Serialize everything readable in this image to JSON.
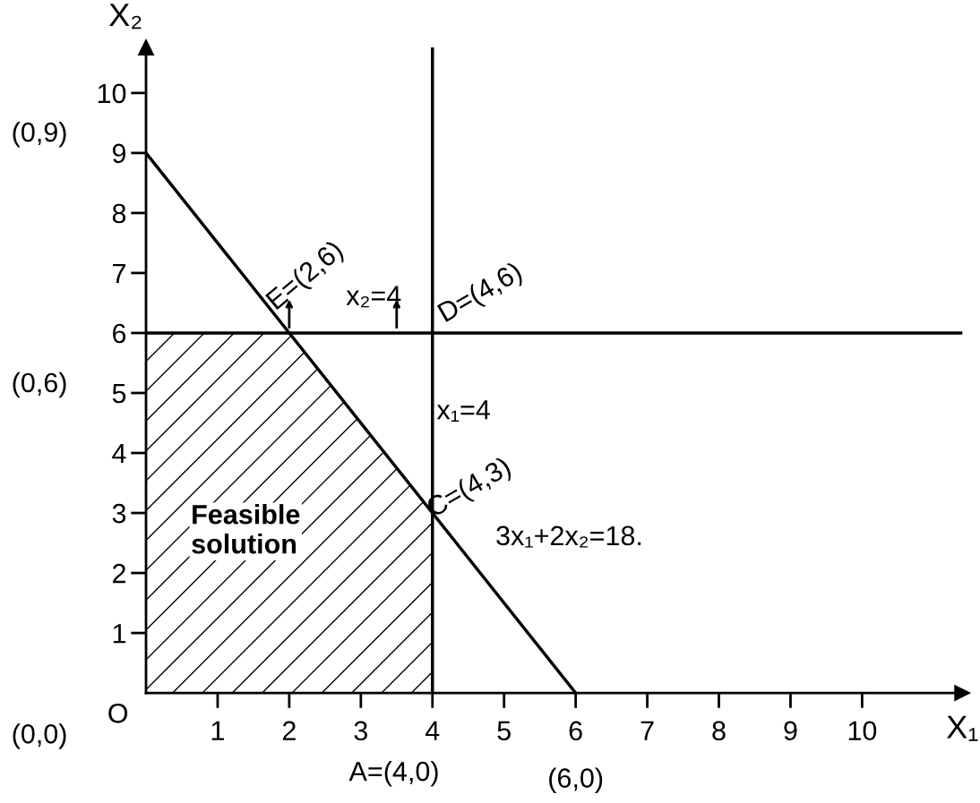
{
  "chart_data": {
    "type": "line",
    "xlabel": "X₁",
    "ylabel": "X₂",
    "xlim": [
      0,
      11.4
    ],
    "ylim": [
      0,
      10.76
    ],
    "xticks": [
      1,
      2,
      3,
      4,
      5,
      6,
      7,
      8,
      9,
      10
    ],
    "yticks": [
      1,
      2,
      3,
      4,
      5,
      6,
      7,
      8,
      9,
      10
    ],
    "series": [
      {
        "x": [
          0,
          6
        ],
        "values": [
          9,
          0
        ],
        "color": "#000000"
      },
      {
        "type": "area",
        "x": [
          0,
          2,
          4
        ],
        "values": [
          6,
          6,
          3
        ],
        "color": "#000000"
      }
    ],
    "ref_lines": [
      {
        "axis": "x",
        "value": 4,
        "color": "#000000"
      },
      {
        "axis": "y",
        "value": 6,
        "color": "#000000"
      }
    ],
    "annotations": [
      {
        "text": "E=(2,6)",
        "x": 2,
        "y": 6
      },
      {
        "text": "D=(4,6)",
        "x": 4,
        "y": 6
      },
      {
        "text": "C=(4,3)",
        "x": 4,
        "y": 3
      },
      {
        "text": "(6,0)",
        "x": 6,
        "y": 0
      },
      {
        "text": "O",
        "x": 0,
        "y": 0
      },
      "(0,9)",
      "(0,6)",
      "(0,0)",
      "x₂=4",
      "x₁=4",
      "3x₁+2x₂=18.",
      "A=(4,0)",
      "Feasible solution"
    ],
    "grid": false,
    "marker": "none",
    "line_style": "solid"
  }
}
